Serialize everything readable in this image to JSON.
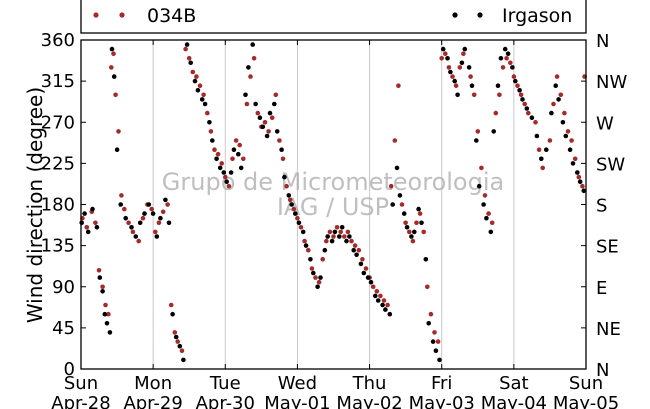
{
  "chart_data": {
    "type": "scatter",
    "xlabel": "",
    "ylabel": "Wind direction (degree)",
    "x_ticks": [
      {
        "day": "Sun",
        "date": "Apr-28"
      },
      {
        "day": "Mon",
        "date": "Apr-29"
      },
      {
        "day": "Tue",
        "date": "Apr-30"
      },
      {
        "day": "Wed",
        "date": "May-01"
      },
      {
        "day": "Thu",
        "date": "May-02"
      },
      {
        "day": "Fri",
        "date": "May-03"
      },
      {
        "day": "Sat",
        "date": "May-04"
      },
      {
        "day": "Sun",
        "date": "May-05"
      }
    ],
    "xlim": [
      "2013-04-28",
      "2013-05-05"
    ],
    "ylim": [
      0,
      360
    ],
    "y_ticks": [
      0,
      45,
      90,
      135,
      180,
      225,
      270,
      315,
      360
    ],
    "y2_ticks": [
      "N",
      "NE",
      "E",
      "SE",
      "S",
      "SW",
      "W",
      "NW",
      "N"
    ],
    "grid": "vertical",
    "legend_position": "top",
    "watermark": [
      "Grupo de Micrometeorologia",
      "IAG / USP"
    ],
    "colors": {
      "034B": "#a52a2a",
      "Irgason": "#000000"
    },
    "series": [
      {
        "name": "034B",
        "color": "#a52a2a",
        "points": [
          [
            0.02,
            165
          ],
          [
            0.08,
            155
          ],
          [
            0.15,
            172
          ],
          [
            0.2,
            160
          ],
          [
            0.25,
            108
          ],
          [
            0.3,
            90
          ],
          [
            0.34,
            70
          ],
          [
            0.38,
            60
          ],
          [
            0.42,
            330
          ],
          [
            0.45,
            345
          ],
          [
            0.48,
            300
          ],
          [
            0.52,
            260
          ],
          [
            0.56,
            190
          ],
          [
            0.6,
            175
          ],
          [
            0.66,
            160
          ],
          [
            0.72,
            150
          ],
          [
            0.8,
            140
          ],
          [
            0.86,
            165
          ],
          [
            0.92,
            180
          ],
          [
            0.98,
            175
          ],
          [
            1.03,
            150
          ],
          [
            1.08,
            160
          ],
          [
            1.14,
            172
          ],
          [
            1.2,
            180
          ],
          [
            1.25,
            70
          ],
          [
            1.3,
            40
          ],
          [
            1.34,
            30
          ],
          [
            1.4,
            20
          ],
          [
            1.45,
            350
          ],
          [
            1.5,
            340
          ],
          [
            1.55,
            325
          ],
          [
            1.6,
            320
          ],
          [
            1.65,
            310
          ],
          [
            1.7,
            300
          ],
          [
            1.75,
            280
          ],
          [
            1.8,
            260
          ],
          [
            1.85,
            240
          ],
          [
            1.9,
            235
          ],
          [
            1.95,
            225
          ],
          [
            2.0,
            210
          ],
          [
            2.05,
            200
          ],
          [
            2.1,
            230
          ],
          [
            2.15,
            250
          ],
          [
            2.2,
            245
          ],
          [
            2.25,
            230
          ],
          [
            2.3,
            290
          ],
          [
            2.35,
            320
          ],
          [
            2.4,
            340
          ],
          [
            2.45,
            280
          ],
          [
            2.5,
            265
          ],
          [
            2.55,
            270
          ],
          [
            2.6,
            260
          ],
          [
            2.65,
            275
          ],
          [
            2.7,
            300
          ],
          [
            2.75,
            250
          ],
          [
            2.8,
            230
          ],
          [
            2.85,
            200
          ],
          [
            2.9,
            185
          ],
          [
            2.95,
            175
          ],
          [
            3.0,
            165
          ],
          [
            3.05,
            155
          ],
          [
            3.1,
            140
          ],
          [
            3.15,
            130
          ],
          [
            3.2,
            110
          ],
          [
            3.25,
            100
          ],
          [
            3.3,
            95
          ],
          [
            3.35,
            120
          ],
          [
            3.4,
            140
          ],
          [
            3.45,
            150
          ],
          [
            3.5,
            145
          ],
          [
            3.55,
            155
          ],
          [
            3.6,
            150
          ],
          [
            3.65,
            145
          ],
          [
            3.7,
            150
          ],
          [
            3.75,
            140
          ],
          [
            3.8,
            135
          ],
          [
            3.85,
            130
          ],
          [
            3.9,
            120
          ],
          [
            3.95,
            110
          ],
          [
            4.0,
            100
          ],
          [
            4.05,
            90
          ],
          [
            4.1,
            85
          ],
          [
            4.15,
            80
          ],
          [
            4.2,
            75
          ],
          [
            4.25,
            70
          ],
          [
            4.3,
            200
          ],
          [
            4.35,
            250
          ],
          [
            4.4,
            310
          ],
          [
            4.45,
            180
          ],
          [
            4.5,
            160
          ],
          [
            4.55,
            150
          ],
          [
            4.6,
            140
          ],
          [
            4.65,
            160
          ],
          [
            4.7,
            170
          ],
          [
            4.75,
            150
          ],
          [
            4.8,
            90
          ],
          [
            4.85,
            60
          ],
          [
            4.9,
            40
          ],
          [
            4.95,
            30
          ],
          [
            5.0,
            340
          ],
          [
            5.05,
            345
          ],
          [
            5.1,
            330
          ],
          [
            5.15,
            320
          ],
          [
            5.2,
            310
          ],
          [
            5.25,
            330
          ],
          [
            5.3,
            345
          ],
          [
            5.4,
            320
          ],
          [
            5.45,
            300
          ],
          [
            5.5,
            260
          ],
          [
            5.55,
            220
          ],
          [
            5.6,
            190
          ],
          [
            5.65,
            170
          ],
          [
            5.7,
            160
          ],
          [
            5.75,
            280
          ],
          [
            5.8,
            300
          ],
          [
            5.85,
            330
          ],
          [
            5.9,
            340
          ],
          [
            5.95,
            335
          ],
          [
            6.0,
            320
          ],
          [
            6.05,
            310
          ],
          [
            6.1,
            300
          ],
          [
            6.15,
            290
          ],
          [
            6.2,
            280
          ],
          [
            6.3,
            270
          ],
          [
            6.35,
            240
          ],
          [
            6.4,
            220
          ],
          [
            6.5,
            250
          ],
          [
            6.55,
            290
          ],
          [
            6.6,
            320
          ],
          [
            6.65,
            300
          ],
          [
            6.7,
            280
          ],
          [
            6.75,
            260
          ],
          [
            6.8,
            250
          ],
          [
            6.85,
            230
          ],
          [
            6.9,
            210
          ],
          [
            6.95,
            200
          ],
          [
            6.98,
            320
          ]
        ]
      },
      {
        "name": "Irgason",
        "color": "#000000",
        "points": [
          [
            0.01,
            160
          ],
          [
            0.05,
            170
          ],
          [
            0.1,
            150
          ],
          [
            0.16,
            175
          ],
          [
            0.22,
            155
          ],
          [
            0.26,
            100
          ],
          [
            0.3,
            85
          ],
          [
            0.33,
            60
          ],
          [
            0.36,
            50
          ],
          [
            0.4,
            40
          ],
          [
            0.43,
            350
          ],
          [
            0.46,
            320
          ],
          [
            0.5,
            240
          ],
          [
            0.55,
            180
          ],
          [
            0.62,
            165
          ],
          [
            0.7,
            155
          ],
          [
            0.76,
            145
          ],
          [
            0.82,
            160
          ],
          [
            0.88,
            170
          ],
          [
            0.94,
            180
          ],
          [
            1.0,
            170
          ],
          [
            1.05,
            145
          ],
          [
            1.1,
            165
          ],
          [
            1.17,
            185
          ],
          [
            1.22,
            160
          ],
          [
            1.27,
            60
          ],
          [
            1.32,
            35
          ],
          [
            1.37,
            25
          ],
          [
            1.42,
            10
          ],
          [
            1.47,
            355
          ],
          [
            1.52,
            335
          ],
          [
            1.58,
            315
          ],
          [
            1.62,
            305
          ],
          [
            1.68,
            295
          ],
          [
            1.72,
            290
          ],
          [
            1.78,
            270
          ],
          [
            1.82,
            250
          ],
          [
            1.88,
            230
          ],
          [
            1.93,
            220
          ],
          [
            1.98,
            215
          ],
          [
            2.02,
            205
          ],
          [
            2.08,
            215
          ],
          [
            2.12,
            240
          ],
          [
            2.18,
            235
          ],
          [
            2.22,
            220
          ],
          [
            2.28,
            300
          ],
          [
            2.32,
            330
          ],
          [
            2.38,
            355
          ],
          [
            2.42,
            290
          ],
          [
            2.48,
            275
          ],
          [
            2.52,
            265
          ],
          [
            2.58,
            255
          ],
          [
            2.62,
            280
          ],
          [
            2.68,
            290
          ],
          [
            2.72,
            260
          ],
          [
            2.78,
            240
          ],
          [
            2.82,
            210
          ],
          [
            2.88,
            190
          ],
          [
            2.92,
            180
          ],
          [
            2.97,
            170
          ],
          [
            3.02,
            160
          ],
          [
            3.08,
            150
          ],
          [
            3.12,
            135
          ],
          [
            3.18,
            120
          ],
          [
            3.22,
            105
          ],
          [
            3.28,
            90
          ],
          [
            3.32,
            100
          ],
          [
            3.38,
            130
          ],
          [
            3.42,
            145
          ],
          [
            3.48,
            140
          ],
          [
            3.52,
            150
          ],
          [
            3.58,
            145
          ],
          [
            3.62,
            155
          ],
          [
            3.68,
            140
          ],
          [
            3.72,
            145
          ],
          [
            3.78,
            130
          ],
          [
            3.82,
            125
          ],
          [
            3.88,
            115
          ],
          [
            3.92,
            105
          ],
          [
            3.98,
            100
          ],
          [
            4.02,
            95
          ],
          [
            4.08,
            80
          ],
          [
            4.12,
            75
          ],
          [
            4.18,
            70
          ],
          [
            4.22,
            65
          ],
          [
            4.28,
            60
          ],
          [
            4.32,
            180
          ],
          [
            4.38,
            220
          ],
          [
            4.42,
            190
          ],
          [
            4.48,
            170
          ],
          [
            4.52,
            155
          ],
          [
            4.58,
            145
          ],
          [
            4.62,
            150
          ],
          [
            4.68,
            175
          ],
          [
            4.72,
            160
          ],
          [
            4.78,
            120
          ],
          [
            4.82,
            50
          ],
          [
            4.88,
            30
          ],
          [
            4.92,
            20
          ],
          [
            4.97,
            10
          ],
          [
            5.02,
            350
          ],
          [
            5.08,
            340
          ],
          [
            5.12,
            325
          ],
          [
            5.18,
            315
          ],
          [
            5.22,
            300
          ],
          [
            5.28,
            335
          ],
          [
            5.32,
            350
          ],
          [
            5.38,
            330
          ],
          [
            5.42,
            310
          ],
          [
            5.48,
            250
          ],
          [
            5.52,
            200
          ],
          [
            5.58,
            180
          ],
          [
            5.62,
            165
          ],
          [
            5.68,
            150
          ],
          [
            5.72,
            260
          ],
          [
            5.78,
            310
          ],
          [
            5.82,
            340
          ],
          [
            5.88,
            350
          ],
          [
            5.92,
            345
          ],
          [
            5.98,
            330
          ],
          [
            6.02,
            315
          ],
          [
            6.08,
            305
          ],
          [
            6.12,
            295
          ],
          [
            6.18,
            285
          ],
          [
            6.25,
            275
          ],
          [
            6.32,
            255
          ],
          [
            6.38,
            230
          ],
          [
            6.45,
            240
          ],
          [
            6.52,
            280
          ],
          [
            6.58,
            310
          ],
          [
            6.62,
            295
          ],
          [
            6.68,
            270
          ],
          [
            6.72,
            255
          ],
          [
            6.78,
            240
          ],
          [
            6.82,
            225
          ],
          [
            6.88,
            215
          ],
          [
            6.92,
            205
          ],
          [
            6.97,
            195
          ]
        ]
      }
    ]
  }
}
